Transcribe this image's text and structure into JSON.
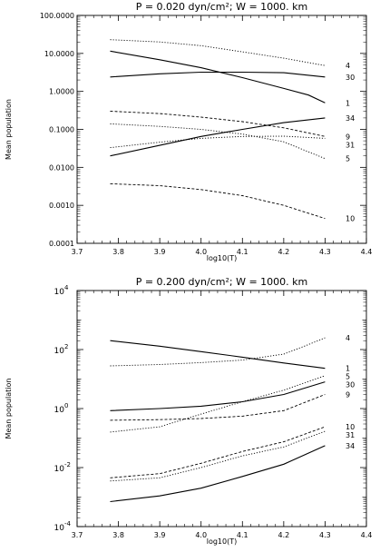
{
  "chart_data": [
    {
      "type": "line",
      "title": "P =  0.020 dyn/cm²; W = 1000. km",
      "xlabel": "log10(T)",
      "ylabel": "Mean population",
      "xlim": [
        3.7,
        4.4
      ],
      "ylim": [
        0.0001,
        100
      ],
      "yscale": "log",
      "grid": false,
      "x_ticks": [
        "3.7",
        "3.8",
        "3.9",
        "4.0",
        "4.1",
        "4.2",
        "4.3",
        "4.4"
      ],
      "y_ticks": [
        "0.0001",
        "0.0010",
        "0.0100",
        "0.1000",
        "1.0000",
        "10.0000",
        "100.0000"
      ],
      "series": [
        {
          "name": "4",
          "style": "dotted",
          "x": [
            3.78,
            3.9,
            4.0,
            4.1,
            4.2,
            4.3
          ],
          "y": [
            23,
            20,
            16,
            11,
            7.5,
            4.8
          ]
        },
        {
          "name": "30",
          "style": "solid",
          "x": [
            3.78,
            3.9,
            4.0,
            4.1,
            4.2,
            4.3
          ],
          "y": [
            2.4,
            2.9,
            3.2,
            3.2,
            3.1,
            2.4
          ]
        },
        {
          "name": "1",
          "style": "solid",
          "x": [
            3.78,
            3.9,
            4.0,
            4.1,
            4.2,
            4.26,
            4.3
          ],
          "y": [
            11.5,
            6.8,
            4.2,
            2.3,
            1.2,
            0.8,
            0.5
          ]
        },
        {
          "name": "34",
          "style": "solid",
          "x": [
            3.78,
            3.9,
            4.0,
            4.1,
            4.2,
            4.3
          ],
          "y": [
            0.02,
            0.038,
            0.065,
            0.1,
            0.15,
            0.2
          ]
        },
        {
          "name": "9",
          "style": "dashed",
          "x": [
            3.78,
            3.9,
            4.0,
            4.1,
            4.2,
            4.3
          ],
          "y": [
            0.3,
            0.26,
            0.21,
            0.16,
            0.11,
            0.065
          ]
        },
        {
          "name": "31",
          "style": "dotted",
          "x": [
            3.78,
            3.9,
            4.0,
            4.1,
            4.2,
            4.3
          ],
          "y": [
            0.033,
            0.046,
            0.058,
            0.065,
            0.066,
            0.058
          ]
        },
        {
          "name": "5",
          "style": "dotted",
          "x": [
            3.78,
            3.9,
            4.0,
            4.1,
            4.2,
            4.3
          ],
          "y": [
            0.14,
            0.12,
            0.1,
            0.075,
            0.047,
            0.017
          ]
        },
        {
          "name": "10",
          "style": "dashed",
          "x": [
            3.78,
            3.9,
            4.0,
            4.1,
            4.2,
            4.3
          ],
          "y": [
            0.0037,
            0.0033,
            0.0026,
            0.0018,
            0.001,
            0.00045
          ]
        }
      ]
    },
    {
      "type": "line",
      "title": "P =  0.200 dyn/cm²; W = 1000. km",
      "xlabel": "log10(T)",
      "ylabel": "Mean population",
      "xlim": [
        3.7,
        4.4
      ],
      "ylim": [
        0.0001,
        10000
      ],
      "yscale": "log",
      "grid": false,
      "x_ticks": [
        "3.7",
        "3.8",
        "3.9",
        "4.0",
        "4.1",
        "4.2",
        "4.3",
        "4.4"
      ],
      "y_ticks": [
        {
          "base": "10",
          "exp": "-4"
        },
        {
          "base": "10",
          "exp": "-2"
        },
        {
          "base": "10",
          "exp": "0"
        },
        {
          "base": "10",
          "exp": "2"
        },
        {
          "base": "10",
          "exp": "4"
        }
      ],
      "series": [
        {
          "name": "4",
          "style": "dotted",
          "x": [
            3.78,
            3.9,
            4.0,
            4.1,
            4.2,
            4.25,
            4.3
          ],
          "y": [
            28,
            31,
            36,
            44,
            70,
            130,
            250
          ]
        },
        {
          "name": "1",
          "style": "solid",
          "x": [
            3.78,
            3.9,
            4.0,
            4.1,
            4.2,
            4.3
          ],
          "y": [
            200,
            130,
            85,
            55,
            35,
            23
          ]
        },
        {
          "name": "5",
          "style": "dotted",
          "x": [
            3.78,
            3.9,
            4.0,
            4.1,
            4.2,
            4.3
          ],
          "y": [
            0.16,
            0.24,
            0.65,
            1.7,
            4.2,
            13
          ]
        },
        {
          "name": "30",
          "style": "solid",
          "x": [
            3.78,
            3.9,
            4.0,
            4.1,
            4.2,
            4.3
          ],
          "y": [
            0.85,
            1.0,
            1.2,
            1.7,
            3.0,
            8
          ]
        },
        {
          "name": "9",
          "style": "dashed",
          "x": [
            3.78,
            3.9,
            4.0,
            4.1,
            4.2,
            4.3
          ],
          "y": [
            0.4,
            0.42,
            0.46,
            0.55,
            0.85,
            3
          ]
        },
        {
          "name": "10",
          "style": "dashed",
          "x": [
            3.78,
            3.9,
            4.0,
            4.1,
            4.2,
            4.3
          ],
          "y": [
            0.0045,
            0.0062,
            0.014,
            0.035,
            0.075,
            0.24
          ]
        },
        {
          "name": "31",
          "style": "dotted",
          "x": [
            3.78,
            3.9,
            4.0,
            4.1,
            4.2,
            4.3
          ],
          "y": [
            0.0035,
            0.0045,
            0.01,
            0.025,
            0.05,
            0.17
          ]
        },
        {
          "name": "34",
          "style": "solid",
          "x": [
            3.78,
            3.9,
            4.0,
            4.1,
            4.2,
            4.3
          ],
          "y": [
            0.0007,
            0.0011,
            0.002,
            0.005,
            0.013,
            0.055
          ]
        }
      ]
    }
  ]
}
